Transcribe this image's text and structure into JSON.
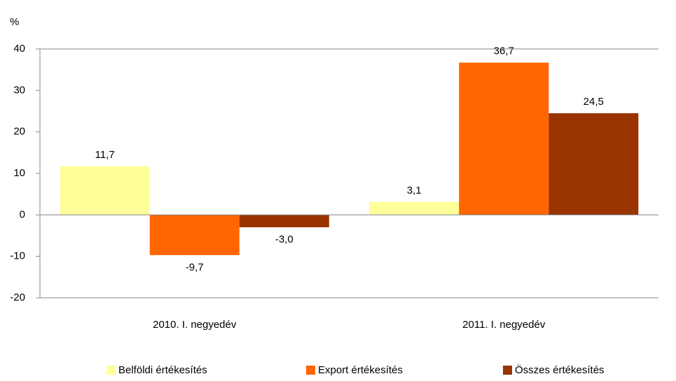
{
  "chart_data": {
    "type": "bar",
    "y_label": "%",
    "categories": [
      "2010. I. negyedév",
      "2011. I. negyedév"
    ],
    "series": [
      {
        "name": "Belföldi értékesítés",
        "color": "#ffff99",
        "values": [
          11.7,
          3.1
        ],
        "value_labels": [
          "11,7",
          "3,1"
        ]
      },
      {
        "name": "Export értékesítés",
        "color": "#ff6600",
        "values": [
          -9.7,
          36.7
        ],
        "value_labels": [
          "-9,7",
          "36,7"
        ]
      },
      {
        "name": "Összes értékesítés",
        "color": "#993300",
        "values": [
          -3.0,
          24.5
        ],
        "value_labels": [
          "-3,0",
          "24,5"
        ]
      }
    ],
    "ylim": [
      -20,
      40
    ],
    "yticks": [
      -20,
      -10,
      0,
      10,
      20,
      30,
      40
    ],
    "grid": false,
    "legend": "bottom"
  }
}
